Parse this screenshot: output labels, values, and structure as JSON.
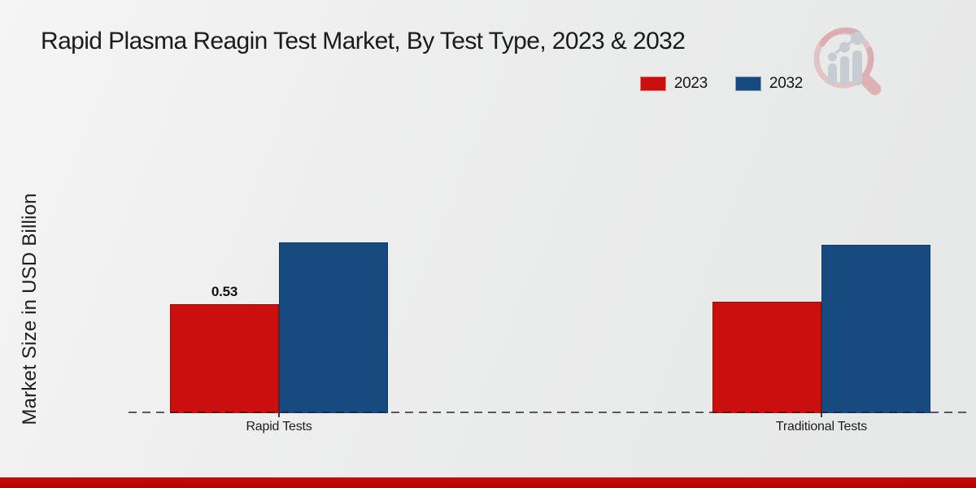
{
  "page": {
    "background_top": "#f5f5f5",
    "background_bottom": "#e6e7e7",
    "bottom_strip_color": "#c20808",
    "watermark_icon": "magnifier-bar-chart-logo"
  },
  "chart_data": {
    "type": "bar",
    "title": "Rapid Plasma Reagin Test Market, By Test Type, 2023 & 2032",
    "xlabel": "",
    "ylabel": "Market Size in USD Billion",
    "categories": [
      "Rapid Tests",
      "Traditional Tests"
    ],
    "series": [
      {
        "name": "2023",
        "color": "#cb0e0e",
        "edge": "#990707",
        "values": [
          0.53,
          0.54
        ],
        "value_labels": [
          "0.53",
          ""
        ]
      },
      {
        "name": "2032",
        "color": "#174b80",
        "edge": "#0e3a66",
        "values": [
          0.83,
          0.82
        ],
        "value_labels": [
          "",
          ""
        ]
      }
    ],
    "ylim": [
      0,
      1.0
    ],
    "grid": false,
    "legend_position": "upper-right",
    "axis_style": "dashed-baseline-only",
    "annotations": [
      "0.53"
    ]
  }
}
